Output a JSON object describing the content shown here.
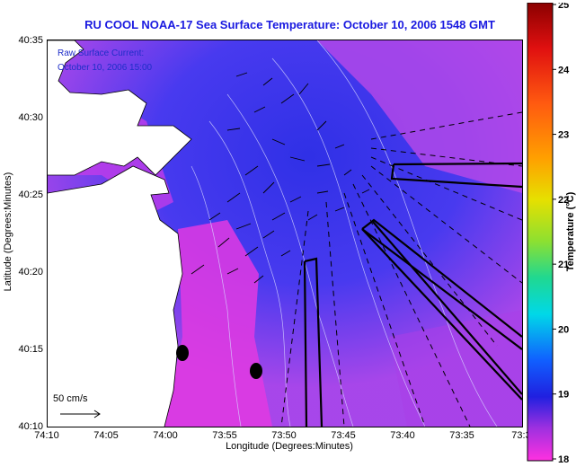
{
  "title": "RU COOL  NOAA-17  Sea Surface Temperature:  October 10, 2006 1548 GMT",
  "raw_note": {
    "line1": "Raw Surface Current:",
    "line2": "October 10, 2006 15:00"
  },
  "scale_bar": {
    "label": "50 cm/s"
  },
  "axes": {
    "xlabel": "Longitude (Degrees:Minutes)",
    "ylabel": "Latitude (Degrees:Minutes)",
    "x_ticks": [
      "74:10",
      "74:05",
      "74:00",
      "73:55",
      "73:50",
      "73:45",
      "73:40",
      "73:35",
      "73:3"
    ],
    "y_ticks": [
      "40:35",
      "40:30",
      "40:25",
      "40:20",
      "40:15",
      "40:10"
    ]
  },
  "colorbar": {
    "label": "Temperature (°C)",
    "min": 18,
    "max": 25,
    "ticks": [
      "25",
      "24",
      "23",
      "22",
      "21",
      "20",
      "19",
      "18"
    ]
  },
  "colors": {
    "title": "#1a1ae0",
    "land": "#ffffff",
    "warm_water": "#2a3fe6",
    "cool_water": "#e038e0"
  }
}
